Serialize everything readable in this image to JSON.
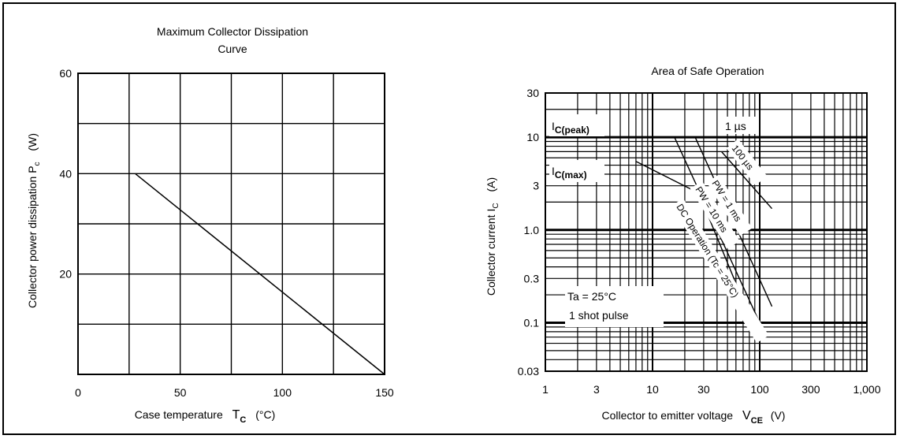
{
  "chart_data": [
    {
      "type": "line",
      "title": "Maximum Collector Dissipation Curve",
      "title_lines": [
        "Maximum Collector Dissipation",
        "Curve"
      ],
      "xlabel": "Case temperature",
      "xlabel_symbol": "T",
      "xlabel_sub": "C",
      "xlabel_unit": "(°C)",
      "ylabel": "Collector power dissipation P",
      "ylabel_sub": "c",
      "ylabel_unit": "(W)",
      "xlim": [
        0,
        150
      ],
      "ylim": [
        0,
        60
      ],
      "x_ticks": [
        0,
        50,
        100,
        150
      ],
      "y_ticks": [
        20,
        40,
        60
      ],
      "x_tick_labels": [
        "0",
        "50",
        "100",
        "150"
      ],
      "y_tick_labels": [
        "20",
        "40",
        "60"
      ],
      "grid": true,
      "series": [
        {
          "x": [
            28,
            150
          ],
          "y": [
            40,
            0
          ]
        }
      ]
    },
    {
      "type": "line",
      "title": "Area of Safe Operation",
      "xlabel": "Collector to emitter voltage",
      "xlabel_symbol": "V",
      "xlabel_sub": "CE",
      "xlabel_unit": "(V)",
      "ylabel": "Collector current I",
      "ylabel_sub": "C",
      "ylabel_unit": "(A)",
      "x_scale": "log",
      "y_scale": "log",
      "xlim": [
        1,
        1000
      ],
      "ylim": [
        0.03,
        30
      ],
      "x_tick_labels": [
        "1",
        "3",
        "10",
        "30",
        "100",
        "300",
        "1,000"
      ],
      "x_ticks": [
        1,
        3,
        10,
        30,
        100,
        300,
        1000
      ],
      "y_tick_labels": [
        "0.03",
        "0.1",
        "0.3",
        "1.0",
        "3",
        "10",
        "30"
      ],
      "y_ticks": [
        0.03,
        0.1,
        0.3,
        1,
        3,
        10,
        30
      ],
      "grid": true,
      "annotations": {
        "ic_peak": "I",
        "ic_peak_sub": "C(peak)",
        "ic_max": "I",
        "ic_max_sub": "C(max)",
        "pulse_1us": "1 µs",
        "pulse_100us": "100 µs",
        "pulse_1ms": "PW = 1 ms",
        "pulse_10ms": "PW = 10 ms",
        "dc_operation": "DC Operation (Tc = 25°C)",
        "conditions_1": "Ta = 25°C",
        "conditions_2": "1 shot pulse"
      },
      "series": [
        {
          "name": "1 µs",
          "x": [
            44,
            130
          ],
          "y": [
            7,
            1.7
          ]
        },
        {
          "name": "PW = 1 ms",
          "x": [
            16,
            100
          ],
          "y": [
            10,
            0.1
          ]
        },
        {
          "name": "PW = 10 ms",
          "x": [
            25,
            130
          ],
          "y": [
            10,
            0.15
          ]
        },
        {
          "name": "DC Operation (Tc = 25°C)",
          "x": [
            7,
            27,
            85
          ],
          "y": [
            5.5,
            2.5,
            0.1
          ]
        }
      ]
    }
  ]
}
